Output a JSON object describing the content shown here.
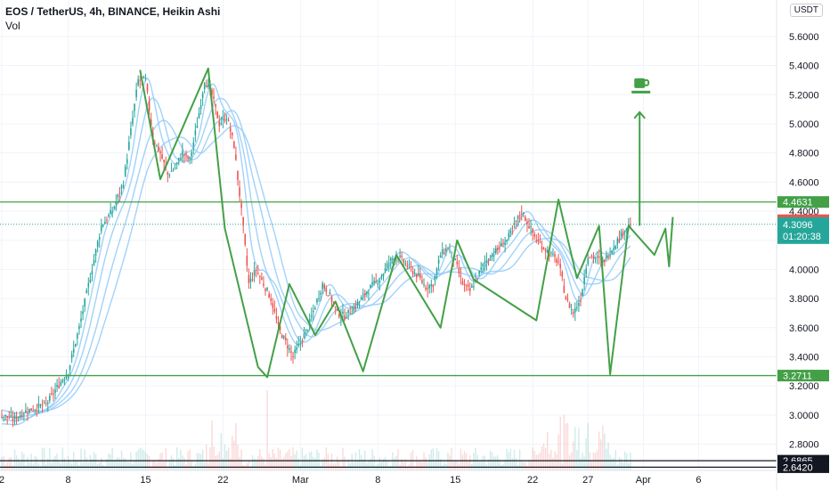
{
  "header": {
    "title": "EOS / TetherUS, 4h, BINANCE, Heikin Ashi",
    "sub": "Vol",
    "currency": "USDT"
  },
  "colors": {
    "up": "#26a69a",
    "down": "#ef5350",
    "trend": "#43a047",
    "bands": "#90caf9",
    "level_green": "#43a047",
    "level_red": "#ef5350",
    "last_price": "#26a69a",
    "black_level": "#131722"
  },
  "icons": {
    "target": "coffee-cup-icon"
  },
  "chart_data": {
    "type": "candlestick",
    "symbol": "EOS / TetherUS",
    "interval": "4h",
    "exchange": "BINANCE",
    "style": "Heikin Ashi",
    "ylim": [
      2.62,
      5.85
    ],
    "yticks": [
      "5.6000",
      "5.4000",
      "5.2000",
      "5.0000",
      "4.8000",
      "4.6000",
      "4.4000",
      "4.2000",
      "4.0000",
      "3.8000",
      "3.6000",
      "3.4000",
      "3.2000",
      "3.0000",
      "2.8000"
    ],
    "x_ticks": [
      {
        "label": "2",
        "idx": 0
      },
      {
        "label": "8",
        "idx": 36
      },
      {
        "label": "15",
        "idx": 78
      },
      {
        "label": "22",
        "idx": 120
      },
      {
        "label": "Mar",
        "idx": 162
      },
      {
        "label": "8",
        "idx": 204
      },
      {
        "label": "15",
        "idx": 246
      },
      {
        "label": "22",
        "idx": 288
      },
      {
        "label": "27",
        "idx": 318
      },
      {
        "label": "Apr",
        "idx": 348
      },
      {
        "label": "6",
        "idx": 378
      }
    ],
    "anchors": [
      [
        0,
        3.0
      ],
      [
        6,
        2.97
      ],
      [
        12,
        3.02
      ],
      [
        18,
        3.05
      ],
      [
        24,
        3.07
      ],
      [
        30,
        3.19
      ],
      [
        36,
        3.3
      ],
      [
        42,
        3.6
      ],
      [
        48,
        3.95
      ],
      [
        54,
        4.3
      ],
      [
        60,
        4.4
      ],
      [
        66,
        4.6
      ],
      [
        70,
        4.95
      ],
      [
        74,
        5.3
      ],
      [
        78,
        5.3
      ],
      [
        82,
        4.9
      ],
      [
        86,
        4.8
      ],
      [
        90,
        4.65
      ],
      [
        94,
        4.7
      ],
      [
        98,
        4.8
      ],
      [
        102,
        4.75
      ],
      [
        106,
        5.0
      ],
      [
        110,
        5.3
      ],
      [
        114,
        5.2
      ],
      [
        118,
        5.0
      ],
      [
        122,
        5.05
      ],
      [
        126,
        4.85
      ],
      [
        130,
        4.4
      ],
      [
        134,
        3.9
      ],
      [
        138,
        4.0
      ],
      [
        142,
        3.9
      ],
      [
        146,
        3.8
      ],
      [
        150,
        3.6
      ],
      [
        154,
        3.5
      ],
      [
        158,
        3.4
      ],
      [
        162,
        3.5
      ],
      [
        166,
        3.6
      ],
      [
        170,
        3.75
      ],
      [
        174,
        3.9
      ],
      [
        178,
        3.82
      ],
      [
        182,
        3.7
      ],
      [
        186,
        3.68
      ],
      [
        190,
        3.72
      ],
      [
        194,
        3.78
      ],
      [
        198,
        3.85
      ],
      [
        202,
        3.9
      ],
      [
        206,
        3.95
      ],
      [
        210,
        4.05
      ],
      [
        214,
        4.1
      ],
      [
        218,
        4.05
      ],
      [
        222,
        4.0
      ],
      [
        226,
        3.95
      ],
      [
        230,
        3.88
      ],
      [
        234,
        3.9
      ],
      [
        238,
        4.1
      ],
      [
        242,
        4.15
      ],
      [
        246,
        4.05
      ],
      [
        250,
        3.9
      ],
      [
        254,
        3.85
      ],
      [
        258,
        3.95
      ],
      [
        262,
        4.05
      ],
      [
        266,
        4.1
      ],
      [
        270,
        4.15
      ],
      [
        274,
        4.2
      ],
      [
        278,
        4.3
      ],
      [
        282,
        4.4
      ],
      [
        286,
        4.3
      ],
      [
        290,
        4.2
      ],
      [
        294,
        4.15
      ],
      [
        298,
        4.1
      ],
      [
        302,
        4.05
      ],
      [
        306,
        3.8
      ],
      [
        310,
        3.7
      ],
      [
        314,
        3.8
      ],
      [
        318,
        4.1
      ],
      [
        322,
        4.08
      ],
      [
        326,
        4.05
      ],
      [
        330,
        4.12
      ],
      [
        334,
        4.2
      ],
      [
        338,
        4.28
      ],
      [
        341,
        4.31
      ]
    ],
    "bands": [
      {
        "offset": -0.1,
        "lag": 3
      },
      {
        "offset": -0.05,
        "lag": 6
      },
      {
        "offset": 0.0,
        "lag": 10
      },
      {
        "offset": 0.06,
        "lag": 14
      }
    ],
    "trend_line": [
      [
        3.29,
        5.37
      ],
      [
        209.5,
        4.62
      ],
      [
        266.5,
        5.38
      ],
      [
        296,
        4.28
      ],
      [
        321,
        3.33
      ],
      [
        324.5,
        3.26
      ],
      [
        336.5,
        3.9
      ],
      [
        349,
        3.55
      ],
      [
        351,
        3.63
      ],
      [
        361.5,
        3.78
      ],
      [
        366,
        3.3
      ],
      [
        368,
        3.72
      ]
    ],
    "trend_points_note": "",
    "trend_path": [
      [
        75,
        5.37
      ],
      [
        86,
        4.62
      ],
      [
        112,
        5.38
      ],
      [
        121,
        4.28
      ],
      [
        139,
        3.33
      ],
      [
        144,
        3.26
      ],
      [
        156,
        3.9
      ],
      [
        170,
        3.55
      ],
      [
        181,
        3.78
      ],
      [
        196,
        3.3
      ],
      [
        214,
        4.1
      ],
      [
        238,
        3.6
      ],
      [
        247,
        4.2
      ],
      [
        256,
        3.93
      ],
      [
        290,
        3.65
      ],
      [
        302,
        4.48
      ],
      [
        312,
        3.94
      ],
      [
        324,
        4.3
      ],
      [
        330,
        3.28
      ],
      [
        340,
        4.3
      ],
      [
        354,
        4.1
      ],
      [
        360,
        4.28
      ],
      [
        362,
        4.02
      ],
      [
        364,
        4.36
      ]
    ],
    "levels": [
      {
        "value": 4.4631,
        "label": "4.4631",
        "kind": "green"
      },
      {
        "value": 3.2711,
        "label": "3.2711",
        "kind": "green"
      },
      {
        "value": 2.6865,
        "label": "2.6865",
        "kind": "black"
      },
      {
        "value": 2.642,
        "label": "2.6420",
        "kind": "black"
      }
    ],
    "current_price": {
      "value": 4.3288,
      "label": "4.3288"
    },
    "last_price": {
      "value": 4.3096,
      "label": "4.3096",
      "countdown": "01:20:38"
    },
    "target": {
      "from_idx": 346,
      "from": 4.3,
      "to": 5.08
    }
  }
}
